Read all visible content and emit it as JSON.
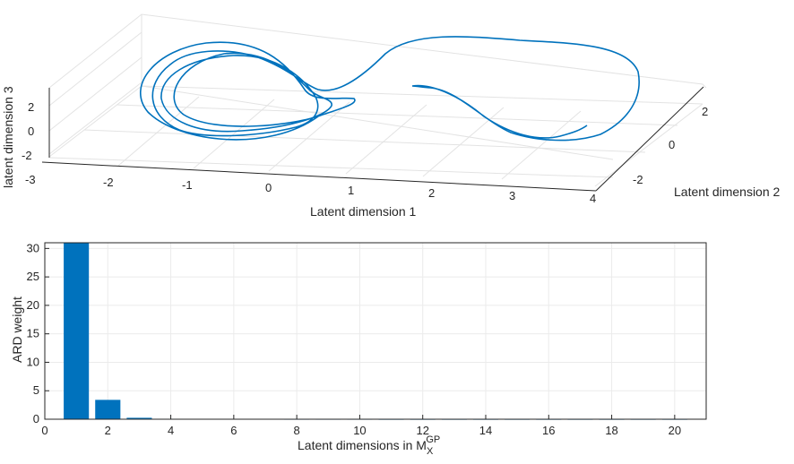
{
  "chart_data": [
    {
      "type": "line3d",
      "title": "",
      "xlabel": "Latent dimension 1",
      "ylabel": "Latent dimension 2",
      "zlabel": "latent dimension 3",
      "xticks": [
        "-3",
        "-2",
        "-1",
        "0",
        "1",
        "2",
        "3",
        "4"
      ],
      "yticks": [
        "-2",
        "0",
        "2"
      ],
      "zticks": [
        "-2",
        "0",
        "2"
      ],
      "xlim": [
        -3,
        4
      ],
      "ylim": [
        -3,
        3
      ],
      "zlim": [
        -3,
        3
      ],
      "grid": true,
      "series_color": "#0072BD",
      "trajectory_description_points": [
        [
          -1.8,
          1.6,
          0.6
        ],
        [
          -2.4,
          0.8,
          0.4
        ],
        [
          -2.6,
          -0.4,
          0.2
        ],
        [
          -2.0,
          -1.4,
          -0.2
        ],
        [
          -0.8,
          -1.6,
          -0.1
        ],
        [
          0.2,
          -0.6,
          0.4
        ],
        [
          0.4,
          0.6,
          0.8
        ],
        [
          -0.4,
          1.6,
          1.0
        ],
        [
          -1.6,
          1.8,
          0.8
        ],
        [
          -2.2,
          0.6,
          0.3
        ],
        [
          -2.0,
          -0.8,
          0.0
        ],
        [
          -1.0,
          -1.2,
          0.1
        ],
        [
          0.0,
          -0.4,
          0.5
        ],
        [
          0.6,
          0.4,
          0.9
        ],
        [
          1.6,
          2.4,
          1.2
        ],
        [
          3.0,
          2.6,
          0.9
        ],
        [
          4.0,
          1.8,
          0.4
        ],
        [
          3.6,
          0.0,
          -0.4
        ],
        [
          2.6,
          -1.4,
          -0.8
        ],
        [
          1.6,
          -0.6,
          0.0
        ],
        [
          1.2,
          0.2,
          0.4
        ],
        [
          2.2,
          -1.0,
          -0.9
        ],
        [
          3.2,
          -1.6,
          -0.7
        ]
      ]
    },
    {
      "type": "bar",
      "title": "",
      "xlabel": "Latent dimensions in M",
      "xlabel_sub": "X",
      "xlabel_sup": "GP",
      "ylabel": "ARD weight",
      "xlim": [
        0,
        21
      ],
      "ylim": [
        0,
        31
      ],
      "xticks": [
        0,
        2,
        4,
        6,
        8,
        10,
        12,
        14,
        16,
        18,
        20
      ],
      "yticks": [
        0,
        5,
        10,
        15,
        20,
        25,
        30
      ],
      "grid": true,
      "bar_color": "#0072BD",
      "categories": [
        1,
        2,
        3,
        4,
        5,
        6,
        7,
        8,
        9,
        10,
        11,
        12,
        13,
        14,
        15,
        16,
        17,
        18,
        19,
        20
      ],
      "values": [
        31.5,
        3.4,
        0.25,
        0.08,
        0.06,
        0.05,
        0.05,
        0.04,
        0.04,
        0.04,
        0.03,
        0.03,
        0.03,
        0.03,
        0.03,
        0.03,
        0.03,
        0.03,
        0.03,
        0.03
      ]
    }
  ]
}
